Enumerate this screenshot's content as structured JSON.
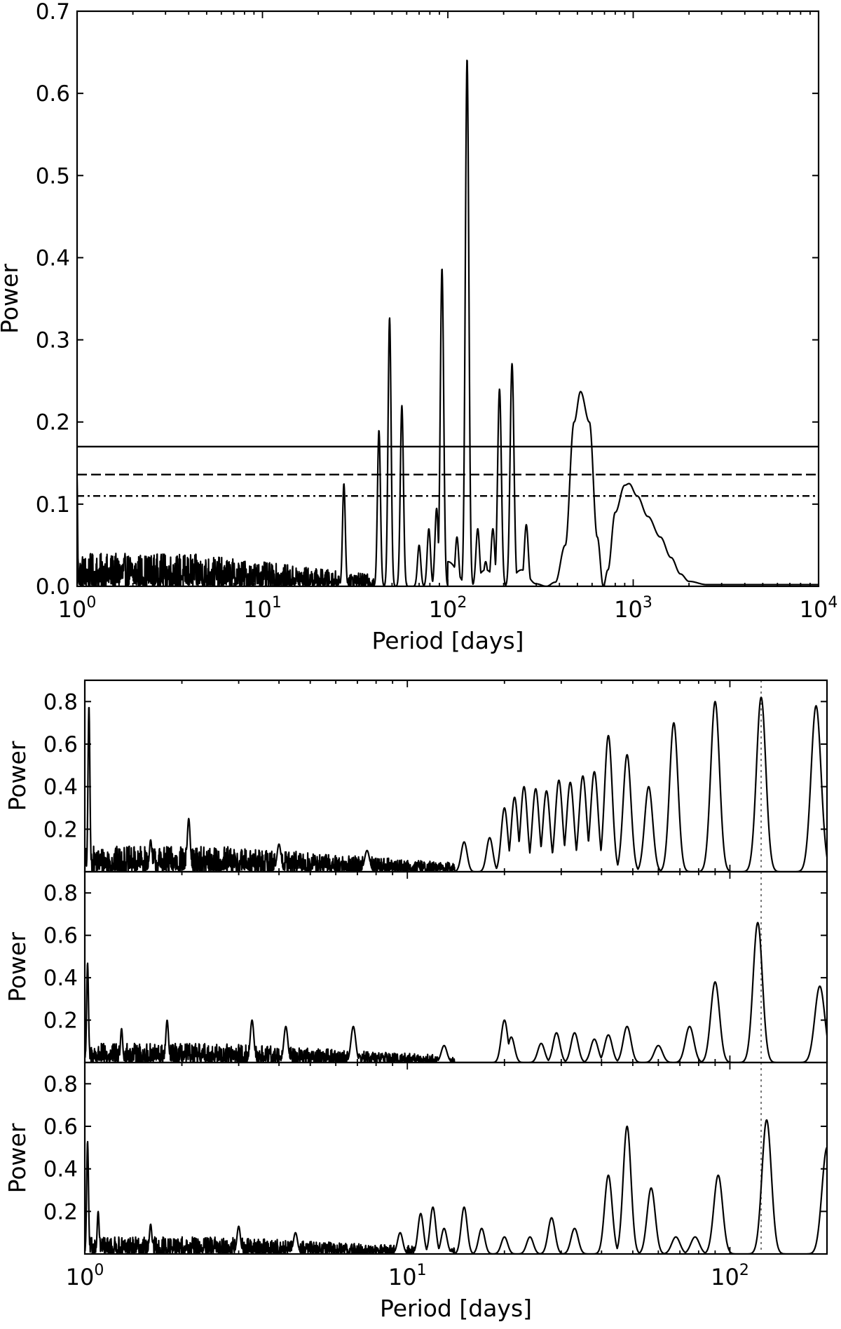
{
  "chart_data": [
    {
      "type": "line",
      "title": "",
      "xlabel": "Period [days]",
      "ylabel": "Power",
      "xscale": "log",
      "xlim": [
        1,
        10000
      ],
      "ylim": [
        0,
        0.7
      ],
      "xticks": [
        1,
        10,
        100,
        1000,
        10000
      ],
      "xtick_labels": [
        {
          "base": "10",
          "exp": "0"
        },
        {
          "base": "10",
          "exp": "1"
        },
        {
          "base": "10",
          "exp": "2"
        },
        {
          "base": "10",
          "exp": "3"
        },
        {
          "base": "10",
          "exp": "4"
        }
      ],
      "yticks": [
        0.0,
        0.1,
        0.2,
        0.3,
        0.4,
        0.5,
        0.6,
        0.7
      ],
      "ytick_labels": [
        "0.0",
        "0.1",
        "0.2",
        "0.3",
        "0.4",
        "0.5",
        "0.6",
        "0.7"
      ],
      "thresholds": [
        {
          "value": 0.17,
          "style": "solid"
        },
        {
          "value": 0.136,
          "style": "dashed"
        },
        {
          "value": 0.11,
          "style": "dashdot"
        }
      ],
      "noise": {
        "x_start": 1.0,
        "x_end": 40,
        "amplitude": 0.04
      },
      "peaks": [
        {
          "x": 1.0,
          "y": 0.13
        },
        {
          "x": 27.5,
          "y": 0.125
        },
        {
          "x": 42.5,
          "y": 0.19
        },
        {
          "x": 48.5,
          "y": 0.327
        },
        {
          "x": 56.5,
          "y": 0.22
        },
        {
          "x": 70,
          "y": 0.05
        },
        {
          "x": 79,
          "y": 0.07
        },
        {
          "x": 87,
          "y": 0.095
        },
        {
          "x": 93,
          "y": 0.387
        },
        {
          "x": 112,
          "y": 0.06
        },
        {
          "x": 127,
          "y": 0.642
        },
        {
          "x": 145,
          "y": 0.07
        },
        {
          "x": 160,
          "y": 0.03
        },
        {
          "x": 175,
          "y": 0.07
        },
        {
          "x": 190,
          "y": 0.24
        },
        {
          "x": 222,
          "y": 0.271
        },
        {
          "x": 265,
          "y": 0.075
        },
        {
          "x": 520,
          "y": 0.237
        },
        {
          "x": 950,
          "y": 0.125
        }
      ],
      "smooth_curve": {
        "x": [
          100,
          130,
          160,
          200,
          250,
          300,
          340,
          380,
          430,
          480,
          520,
          580,
          640,
          690,
          730,
          800,
          900,
          950,
          1050,
          1200,
          1400,
          1600,
          1800,
          2000,
          2500,
          3000,
          5000,
          10000
        ],
        "y": [
          0.03,
          0.0,
          0.02,
          0.0,
          0.02,
          0.003,
          0.0,
          0.005,
          0.05,
          0.2,
          0.237,
          0.2,
          0.06,
          0.0,
          0.02,
          0.09,
          0.123,
          0.125,
          0.11,
          0.085,
          0.06,
          0.035,
          0.015,
          0.006,
          0.002,
          0.002,
          0.002,
          0.002
        ]
      }
    },
    {
      "type": "line",
      "ylabel": "Power",
      "xscale": "log",
      "xlim": [
        1,
        200
      ],
      "ylim": [
        0,
        0.9
      ],
      "yticks": [
        0.2,
        0.4,
        0.6,
        0.8
      ],
      "ytick_labels": [
        "0.2",
        "0.4",
        "0.6",
        "0.8"
      ],
      "marker_period": 125,
      "noise": {
        "x_start": 1.0,
        "x_end": 14,
        "amplitude": 0.12
      },
      "peaks": [
        {
          "x": 1.03,
          "y": 0.78
        },
        {
          "x": 2.1,
          "y": 0.25
        },
        {
          "x": 1.6,
          "y": 0.15
        },
        {
          "x": 4.0,
          "y": 0.13
        },
        {
          "x": 7.5,
          "y": 0.1
        },
        {
          "x": 15,
          "y": 0.14
        },
        {
          "x": 18,
          "y": 0.16
        },
        {
          "x": 20,
          "y": 0.3
        },
        {
          "x": 21.5,
          "y": 0.35
        },
        {
          "x": 23,
          "y": 0.4
        },
        {
          "x": 25,
          "y": 0.39
        },
        {
          "x": 27,
          "y": 0.38
        },
        {
          "x": 29.5,
          "y": 0.43
        },
        {
          "x": 32,
          "y": 0.42
        },
        {
          "x": 35,
          "y": 0.45
        },
        {
          "x": 38,
          "y": 0.47
        },
        {
          "x": 42,
          "y": 0.64
        },
        {
          "x": 48,
          "y": 0.55
        },
        {
          "x": 56,
          "y": 0.4
        },
        {
          "x": 67,
          "y": 0.7
        },
        {
          "x": 90,
          "y": 0.8
        },
        {
          "x": 125,
          "y": 0.82
        },
        {
          "x": 185,
          "y": 0.78
        }
      ]
    },
    {
      "type": "line",
      "ylabel": "Power",
      "xscale": "log",
      "xlim": [
        1,
        200
      ],
      "ylim": [
        0,
        0.9
      ],
      "yticks": [
        0.2,
        0.4,
        0.6,
        0.8
      ],
      "ytick_labels": [
        "0.2",
        "0.4",
        "0.6",
        "0.8"
      ],
      "marker_period": 125,
      "noise": {
        "x_start": 1.0,
        "x_end": 14,
        "amplitude": 0.09
      },
      "peaks": [
        {
          "x": 1.02,
          "y": 0.47
        },
        {
          "x": 1.3,
          "y": 0.16
        },
        {
          "x": 1.8,
          "y": 0.2
        },
        {
          "x": 3.3,
          "y": 0.2
        },
        {
          "x": 4.2,
          "y": 0.17
        },
        {
          "x": 6.8,
          "y": 0.17
        },
        {
          "x": 13,
          "y": 0.08
        },
        {
          "x": 20,
          "y": 0.2
        },
        {
          "x": 21,
          "y": 0.12
        },
        {
          "x": 26,
          "y": 0.09
        },
        {
          "x": 29,
          "y": 0.14
        },
        {
          "x": 33,
          "y": 0.14
        },
        {
          "x": 38,
          "y": 0.11
        },
        {
          "x": 42,
          "y": 0.13
        },
        {
          "x": 48,
          "y": 0.17
        },
        {
          "x": 60,
          "y": 0.08
        },
        {
          "x": 75,
          "y": 0.17
        },
        {
          "x": 90,
          "y": 0.38
        },
        {
          "x": 122,
          "y": 0.66
        },
        {
          "x": 190,
          "y": 0.36
        }
      ]
    },
    {
      "type": "line",
      "xlabel": "Period [days]",
      "ylabel": "Power",
      "xscale": "log",
      "xlim": [
        1,
        200
      ],
      "ylim": [
        0,
        0.9
      ],
      "xticks": [
        1,
        10,
        100
      ],
      "xtick_labels": [
        {
          "base": "10",
          "exp": "0"
        },
        {
          "base": "10",
          "exp": "1"
        },
        {
          "base": "10",
          "exp": "2"
        }
      ],
      "yticks": [
        0.2,
        0.4,
        0.6,
        0.8
      ],
      "ytick_labels": [
        "0.2",
        "0.4",
        "0.6",
        "0.8"
      ],
      "marker_period": 125,
      "noise": {
        "x_start": 1.0,
        "x_end": 14,
        "amplitude": 0.08
      },
      "peaks": [
        {
          "x": 1.02,
          "y": 0.53
        },
        {
          "x": 1.1,
          "y": 0.2
        },
        {
          "x": 1.6,
          "y": 0.14
        },
        {
          "x": 3.0,
          "y": 0.13
        },
        {
          "x": 4.5,
          "y": 0.1
        },
        {
          "x": 9.5,
          "y": 0.1
        },
        {
          "x": 11,
          "y": 0.19
        },
        {
          "x": 12,
          "y": 0.22
        },
        {
          "x": 13,
          "y": 0.12
        },
        {
          "x": 15,
          "y": 0.22
        },
        {
          "x": 17,
          "y": 0.12
        },
        {
          "x": 20,
          "y": 0.08
        },
        {
          "x": 24,
          "y": 0.08
        },
        {
          "x": 28,
          "y": 0.17
        },
        {
          "x": 33,
          "y": 0.12
        },
        {
          "x": 42,
          "y": 0.37
        },
        {
          "x": 48,
          "y": 0.6
        },
        {
          "x": 57,
          "y": 0.31
        },
        {
          "x": 68,
          "y": 0.08
        },
        {
          "x": 78,
          "y": 0.08
        },
        {
          "x": 92,
          "y": 0.37
        },
        {
          "x": 130,
          "y": 0.63
        },
        {
          "x": 200,
          "y": 0.5
        }
      ]
    }
  ]
}
